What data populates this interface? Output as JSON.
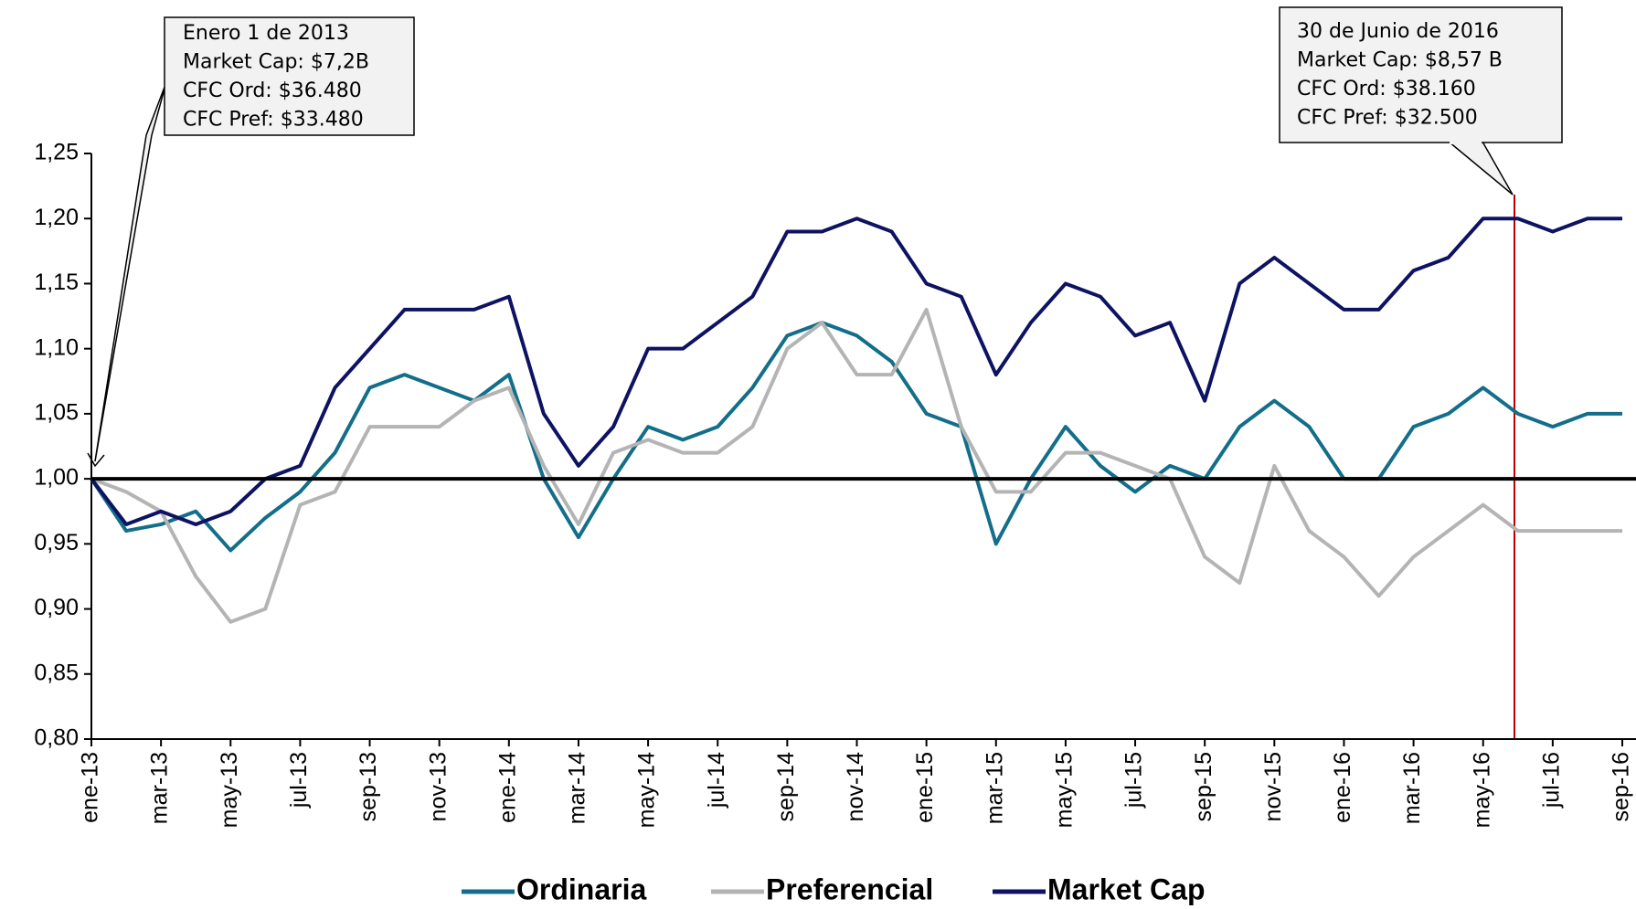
{
  "chart_data": {
    "type": "line",
    "categories": [
      "ene-13",
      null,
      "mar-13",
      null,
      "may-13",
      null,
      "jul-13",
      null,
      "sep-13",
      null,
      "nov-13",
      null,
      "ene-14",
      null,
      "mar-14",
      null,
      "may-14",
      null,
      "jul-14",
      null,
      "sep-14",
      null,
      "nov-14",
      null,
      "ene-15",
      null,
      "mar-15",
      null,
      "may-15",
      null,
      "jul-15",
      null,
      "sep-15",
      null,
      "nov-15",
      null,
      "ene-16",
      null,
      "mar-16",
      null,
      "may-16",
      null,
      "jul-16",
      null,
      "sep-16"
    ],
    "series": [
      {
        "name": "Ordinaria",
        "color": "#136e8a",
        "values": [
          1.0,
          0.96,
          0.965,
          0.975,
          0.945,
          0.97,
          0.99,
          1.02,
          1.07,
          1.08,
          1.07,
          1.06,
          1.08,
          1.0,
          0.955,
          1.0,
          1.04,
          1.03,
          1.04,
          1.07,
          1.11,
          1.12,
          1.11,
          1.09,
          1.05,
          1.04,
          0.95,
          1.0,
          1.04,
          1.01,
          0.99,
          1.01,
          1.0,
          1.04,
          1.06,
          1.04,
          1.0,
          1.0,
          1.04,
          1.05,
          1.07,
          1.05,
          1.04,
          1.05,
          1.05
        ]
      },
      {
        "name": "Preferencial",
        "color": "#b4b4b4",
        "values": [
          1.0,
          0.99,
          0.975,
          0.925,
          0.89,
          0.9,
          0.98,
          0.99,
          1.04,
          1.04,
          1.04,
          1.06,
          1.07,
          1.01,
          0.965,
          1.02,
          1.03,
          1.02,
          1.02,
          1.04,
          1.1,
          1.12,
          1.08,
          1.08,
          1.13,
          1.04,
          0.99,
          0.99,
          1.02,
          1.02,
          1.01,
          1.0,
          0.94,
          0.92,
          1.01,
          0.96,
          0.94,
          0.91,
          0.94,
          0.96,
          0.98,
          0.96,
          0.96,
          0.96,
          0.96
        ]
      },
      {
        "name": "Market Cap",
        "color": "#0d1262",
        "values": [
          1.0,
          0.965,
          0.975,
          0.965,
          0.975,
          1.0,
          1.01,
          1.07,
          1.1,
          1.13,
          1.13,
          1.13,
          1.14,
          1.05,
          1.01,
          1.04,
          1.1,
          1.1,
          1.12,
          1.14,
          1.19,
          1.19,
          1.2,
          1.19,
          1.15,
          1.14,
          1.08,
          1.12,
          1.15,
          1.14,
          1.11,
          1.12,
          1.06,
          1.15,
          1.17,
          1.15,
          1.13,
          1.13,
          1.16,
          1.17,
          1.2,
          1.2,
          1.19,
          1.2,
          1.2
        ]
      }
    ],
    "ylim": [
      0.8,
      1.25
    ],
    "yticks": [
      {
        "value": 0.8,
        "label": "0,80"
      },
      {
        "value": 0.85,
        "label": "0,85"
      },
      {
        "value": 0.9,
        "label": "0,90"
      },
      {
        "value": 0.95,
        "label": "0,95"
      },
      {
        "value": 1.0,
        "label": "1,00"
      },
      {
        "value": 1.05,
        "label": "1,05"
      },
      {
        "value": 1.1,
        "label": "1,10"
      },
      {
        "value": 1.15,
        "label": "1,15"
      },
      {
        "value": 1.2,
        "label": "1,20"
      },
      {
        "value": 1.25,
        "label": "1,25"
      }
    ],
    "reference_line": 1.0,
    "legend": "bottom",
    "annotations": [
      {
        "lines": [
          "Enero 1 de 2013",
          "Market Cap: $7,2B",
          "CFC Ord: $36.480",
          "CFC Pref: $33.480"
        ]
      },
      {
        "lines": [
          "30 de Junio de 2016",
          "Market Cap: $8,57 B",
          "CFC Ord: $38.160",
          "CFC Pref: $32.500"
        ]
      }
    ]
  }
}
